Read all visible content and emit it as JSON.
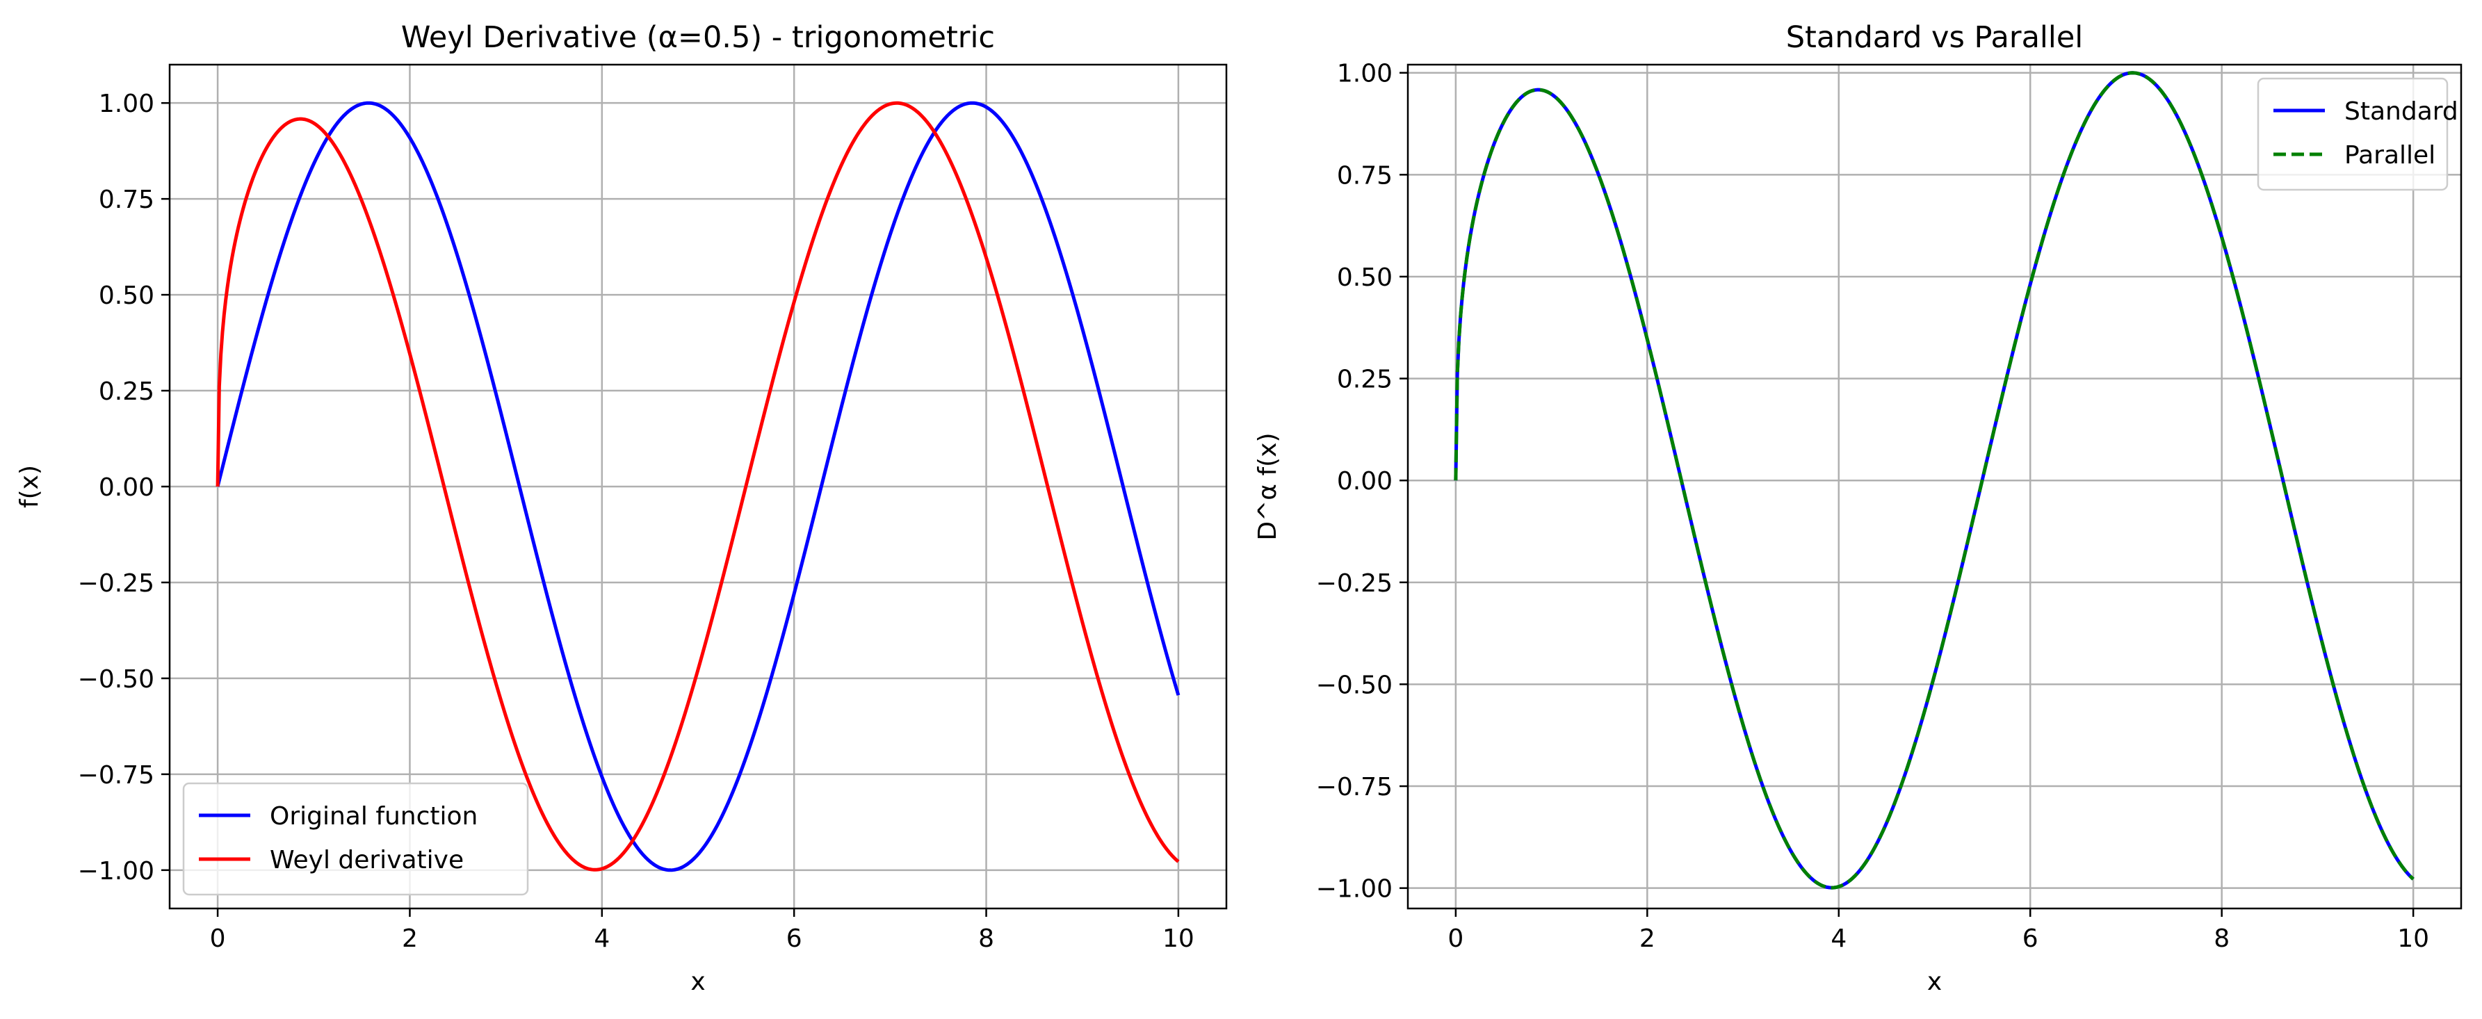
{
  "chart_data": [
    {
      "type": "line",
      "title": "Weyl Derivative (α=0.5) - trigonometric",
      "xlabel": "x",
      "ylabel": "f(x)",
      "xlim": [
        -0.5,
        10.5
      ],
      "ylim": [
        -1.1,
        1.1
      ],
      "xticks": [
        0,
        2,
        4,
        6,
        8,
        10
      ],
      "xtick_labels": [
        "0",
        "2",
        "4",
        "6",
        "8",
        "10"
      ],
      "yticks": [
        1.0,
        0.75,
        0.5,
        0.25,
        0.0,
        -0.25,
        -0.5,
        -0.75,
        -1.0
      ],
      "ytick_labels": [
        "1.00",
        "0.75",
        "0.50",
        "0.25",
        "0.00",
        "−0.25",
        "−0.50",
        "−0.75",
        "−1.00"
      ],
      "grid": true,
      "legend_position": "lower-left",
      "series": [
        {
          "name": "Original function",
          "color": "#0000ff",
          "style": "solid",
          "expression": "sin(x)",
          "x_range": [
            0,
            10
          ]
        },
        {
          "name": "Weyl derivative",
          "color": "#ff0000",
          "style": "solid",
          "expression": "sin(x + 0.5·π/2)·(1 − e^(−3.5·√x))",
          "x_range": [
            0,
            10
          ]
        }
      ]
    },
    {
      "type": "line",
      "title": "Standard vs Parallel",
      "xlabel": "x",
      "ylabel": "D^α f(x)",
      "xlim": [
        -0.5,
        10.5
      ],
      "ylim": [
        -1.05,
        1.02
      ],
      "xticks": [
        0,
        2,
        4,
        6,
        8,
        10
      ],
      "xtick_labels": [
        "0",
        "2",
        "4",
        "6",
        "8",
        "10"
      ],
      "yticks": [
        1.0,
        0.75,
        0.5,
        0.25,
        0.0,
        -0.25,
        -0.5,
        -0.75,
        -1.0
      ],
      "ytick_labels": [
        "1.00",
        "0.75",
        "0.50",
        "0.25",
        "0.00",
        "−0.25",
        "−0.50",
        "−0.75",
        "−1.00"
      ],
      "grid": true,
      "legend_position": "upper-right",
      "series": [
        {
          "name": "Standard",
          "color": "#0000ff",
          "style": "solid",
          "expression": "sin(x + 0.5·π/2)·(1 − e^(−3.5·√x))",
          "x_range": [
            0,
            10
          ]
        },
        {
          "name": "Parallel",
          "color": "#008000",
          "style": "dashed",
          "expression": "sin(x + 0.5·π/2)·(1 − e^(−3.5·√x))",
          "x_range": [
            0,
            10
          ]
        }
      ]
    }
  ]
}
